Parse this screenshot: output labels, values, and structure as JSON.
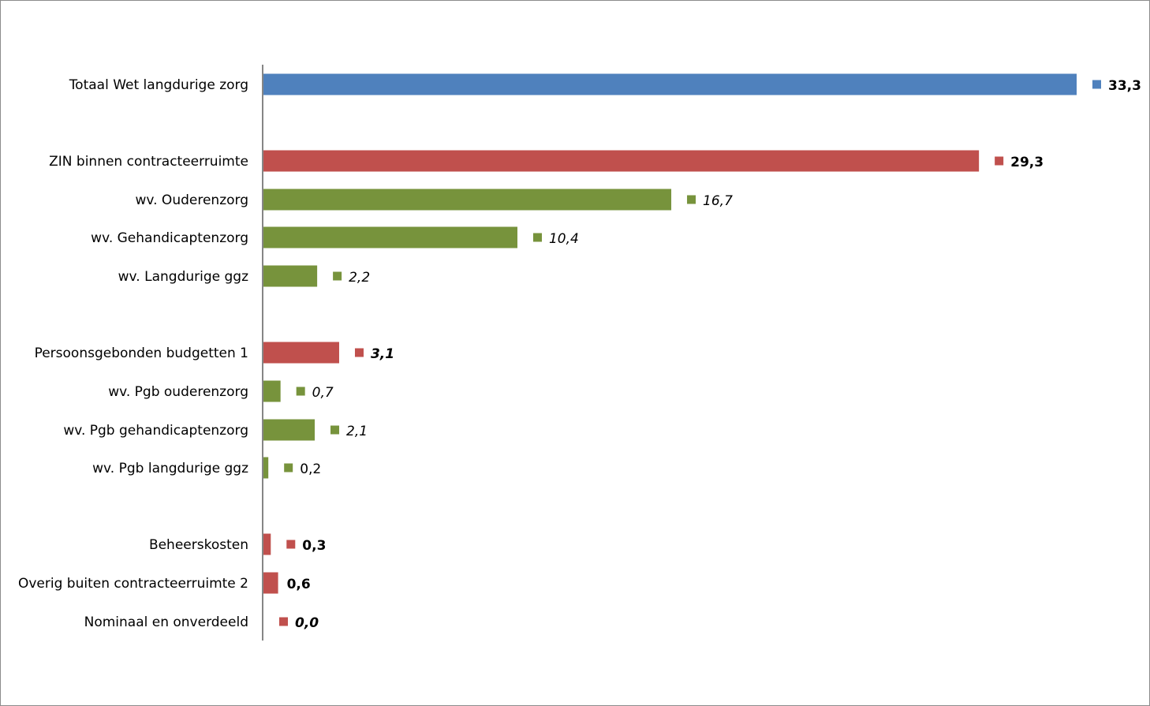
{
  "chart_data": {
    "type": "bar",
    "orientation": "horizontal",
    "title": "",
    "xlabel": "",
    "ylabel": "",
    "xlim": [
      0,
      33.3
    ],
    "grid": false,
    "legend": "none",
    "colors": {
      "total": "#4f81bd",
      "main": "#c0504d",
      "sub": "#77933c"
    },
    "rows": [
      {
        "category": "Totaal Wet langdurige zorg",
        "value": 33.3,
        "label": "33,3",
        "group": "total",
        "style": "bold"
      },
      {
        "category": "ZIN binnen contracteerruimte",
        "value": 29.3,
        "label": "29,3",
        "group": "main",
        "style": "bold"
      },
      {
        "category": "wv. Ouderenzorg",
        "value": 16.7,
        "label": "16,7",
        "group": "sub",
        "style": "italic"
      },
      {
        "category": "wv. Gehandicaptenzorg",
        "value": 10.4,
        "label": "10,4",
        "group": "sub",
        "style": "italic"
      },
      {
        "category": "wv. Langdurige ggz",
        "value": 2.2,
        "label": "2,2",
        "group": "sub",
        "style": "italic"
      },
      {
        "category": "Persoonsgebonden budgetten 1",
        "value": 3.1,
        "label": "3,1",
        "group": "main",
        "style": "bold-italic"
      },
      {
        "category": "wv. Pgb ouderenzorg",
        "value": 0.7,
        "label": "0,7",
        "group": "sub",
        "style": "italic"
      },
      {
        "category": "wv. Pgb gehandicaptenzorg",
        "value": 2.1,
        "label": "2,1",
        "group": "sub",
        "style": "italic"
      },
      {
        "category": "wv. Pgb langdurige ggz",
        "value": 0.2,
        "label": "0,2",
        "group": "sub",
        "style": "normal"
      },
      {
        "category": "Beheerskosten",
        "value": 0.3,
        "label": "0,3",
        "group": "main",
        "style": "bold"
      },
      {
        "category": "Overig buiten contracteerruimte 2",
        "value": 0.6,
        "label": "0,6",
        "group": "main",
        "style": "bold",
        "marker": false
      },
      {
        "category": "Nominaal en onverdeeld",
        "value": 0.0,
        "label": "0,0",
        "group": "main",
        "style": "bold-italic"
      }
    ]
  }
}
